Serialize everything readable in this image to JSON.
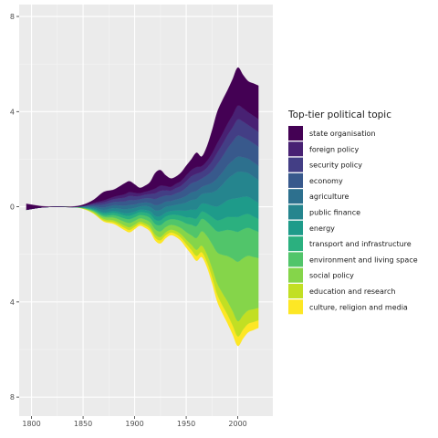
{
  "chart_data": {
    "type": "area",
    "subtype": "streamgraph",
    "title": "",
    "xlabel": "",
    "ylabel": "",
    "x_ticks": [
      1800,
      1850,
      1900,
      1950,
      2000
    ],
    "x_tick_labels": [
      "1800",
      "1850",
      "1900",
      "1950",
      "2000"
    ],
    "xlim": [
      1788,
      2034
    ],
    "y_ticks": [
      8,
      4,
      0,
      -4,
      -8
    ],
    "y_tick_labels": [
      "8",
      "4",
      "0",
      "4",
      "8"
    ],
    "ylim": [
      -8.8,
      8.5
    ],
    "grid": true,
    "legend": {
      "title": "Top-tier political topic",
      "position": "right"
    },
    "x": [
      1795,
      1810,
      1825,
      1840,
      1850,
      1860,
      1870,
      1880,
      1890,
      1895,
      1900,
      1905,
      1910,
      1915,
      1920,
      1925,
      1930,
      1935,
      1940,
      1945,
      1950,
      1955,
      1960,
      1965,
      1970,
      1975,
      1980,
      1985,
      1990,
      1995,
      2000,
      2005,
      2010,
      2015,
      2020
    ],
    "series": [
      {
        "name": "state organisation",
        "color": "#440154",
        "values": [
          0.25,
          0.05,
          0,
          0.02,
          0.05,
          0.12,
          0.35,
          0.3,
          0.45,
          0.45,
          0.35,
          0.22,
          0.25,
          0.35,
          0.65,
          0.65,
          0.45,
          0.35,
          0.3,
          0.35,
          0.4,
          0.45,
          0.6,
          0.4,
          0.6,
          0.95,
          1.3,
          1.4,
          1.4,
          1.5,
          1.6,
          1.4,
          1.3,
          1.35,
          1.4
        ]
      },
      {
        "name": "foreign policy",
        "color": "#482173",
        "values": [
          0,
          0,
          0,
          0,
          0,
          0.04,
          0.08,
          0.1,
          0.14,
          0.16,
          0.15,
          0.12,
          0.12,
          0.15,
          0.2,
          0.22,
          0.18,
          0.16,
          0.18,
          0.2,
          0.24,
          0.26,
          0.28,
          0.24,
          0.28,
          0.34,
          0.4,
          0.44,
          0.48,
          0.52,
          0.58,
          0.56,
          0.54,
          0.54,
          0.54
        ]
      },
      {
        "name": "security policy",
        "color": "#433E85",
        "values": [
          0,
          0,
          0,
          0,
          0,
          0.05,
          0.1,
          0.12,
          0.16,
          0.18,
          0.16,
          0.14,
          0.15,
          0.18,
          0.24,
          0.26,
          0.22,
          0.2,
          0.22,
          0.24,
          0.28,
          0.3,
          0.32,
          0.28,
          0.32,
          0.4,
          0.48,
          0.52,
          0.56,
          0.6,
          0.68,
          0.66,
          0.62,
          0.62,
          0.62
        ]
      },
      {
        "name": "economy",
        "color": "#38598C",
        "values": [
          0,
          0,
          0,
          0,
          0.02,
          0.06,
          0.12,
          0.14,
          0.18,
          0.2,
          0.18,
          0.16,
          0.18,
          0.2,
          0.26,
          0.3,
          0.26,
          0.24,
          0.26,
          0.28,
          0.34,
          0.38,
          0.4,
          0.36,
          0.4,
          0.5,
          0.6,
          0.66,
          0.72,
          0.8,
          0.88,
          0.84,
          0.8,
          0.8,
          0.8
        ]
      },
      {
        "name": "agriculture",
        "color": "#2D708E",
        "values": [
          0,
          0,
          0,
          0,
          0.02,
          0.05,
          0.1,
          0.12,
          0.15,
          0.16,
          0.15,
          0.14,
          0.15,
          0.17,
          0.22,
          0.24,
          0.22,
          0.2,
          0.22,
          0.24,
          0.28,
          0.32,
          0.34,
          0.3,
          0.34,
          0.4,
          0.48,
          0.52,
          0.56,
          0.6,
          0.64,
          0.62,
          0.6,
          0.6,
          0.6
        ]
      },
      {
        "name": "public finance",
        "color": "#25858E",
        "values": [
          0,
          0,
          0,
          0,
          0.02,
          0.05,
          0.1,
          0.12,
          0.16,
          0.18,
          0.16,
          0.14,
          0.16,
          0.18,
          0.24,
          0.26,
          0.24,
          0.22,
          0.24,
          0.28,
          0.34,
          0.4,
          0.44,
          0.4,
          0.46,
          0.56,
          0.7,
          0.8,
          0.9,
          1.0,
          1.1,
          1.05,
          1.0,
          0.98,
          0.96
        ]
      },
      {
        "name": "energy",
        "color": "#1E9B8A",
        "values": [
          0,
          0,
          0,
          0,
          0.01,
          0.03,
          0.06,
          0.08,
          0.1,
          0.12,
          0.1,
          0.1,
          0.11,
          0.13,
          0.16,
          0.18,
          0.17,
          0.16,
          0.18,
          0.22,
          0.28,
          0.34,
          0.38,
          0.34,
          0.4,
          0.48,
          0.58,
          0.64,
          0.7,
          0.76,
          0.8,
          0.76,
          0.72,
          0.7,
          0.68
        ]
      },
      {
        "name": "transport and infrastructure",
        "color": "#2BB07F",
        "values": [
          0,
          0,
          0,
          0,
          0.01,
          0.04,
          0.08,
          0.1,
          0.12,
          0.14,
          0.13,
          0.12,
          0.13,
          0.15,
          0.18,
          0.2,
          0.19,
          0.18,
          0.2,
          0.22,
          0.26,
          0.3,
          0.32,
          0.3,
          0.34,
          0.4,
          0.46,
          0.5,
          0.54,
          0.58,
          0.62,
          0.6,
          0.58,
          0.56,
          0.54
        ]
      },
      {
        "name": "environment and living space",
        "color": "#51C56A",
        "values": [
          0,
          0,
          0,
          0,
          0.01,
          0.03,
          0.06,
          0.1,
          0.14,
          0.16,
          0.15,
          0.14,
          0.16,
          0.18,
          0.22,
          0.26,
          0.25,
          0.24,
          0.26,
          0.3,
          0.36,
          0.44,
          0.5,
          0.52,
          0.6,
          0.72,
          0.88,
          1.0,
          1.1,
          1.18,
          1.26,
          1.22,
          1.18,
          1.14,
          1.1
        ]
      },
      {
        "name": "social policy",
        "color": "#85D54A",
        "values": [
          0,
          0,
          0,
          0,
          0.01,
          0.04,
          0.08,
          0.12,
          0.16,
          0.18,
          0.16,
          0.14,
          0.16,
          0.18,
          0.22,
          0.24,
          0.22,
          0.2,
          0.22,
          0.26,
          0.32,
          0.4,
          0.5,
          0.6,
          0.76,
          1.0,
          1.3,
          1.6,
          1.9,
          2.2,
          2.5,
          2.4,
          2.3,
          2.2,
          2.1
        ]
      },
      {
        "name": "education and research",
        "color": "#C2DF23",
        "values": [
          0,
          0,
          0,
          0,
          0.01,
          0.03,
          0.06,
          0.08,
          0.1,
          0.11,
          0.1,
          0.09,
          0.1,
          0.11,
          0.13,
          0.14,
          0.13,
          0.12,
          0.13,
          0.15,
          0.18,
          0.22,
          0.26,
          0.28,
          0.32,
          0.38,
          0.46,
          0.52,
          0.56,
          0.6,
          0.64,
          0.6,
          0.56,
          0.54,
          0.52
        ]
      },
      {
        "name": "culture, religion and media",
        "color": "#FDE725",
        "values": [
          0,
          0,
          0,
          0,
          0.01,
          0.03,
          0.05,
          0.07,
          0.09,
          0.1,
          0.09,
          0.08,
          0.09,
          0.1,
          0.12,
          0.13,
          0.12,
          0.11,
          0.12,
          0.13,
          0.16,
          0.18,
          0.2,
          0.2,
          0.22,
          0.26,
          0.3,
          0.33,
          0.36,
          0.38,
          0.4,
          0.38,
          0.36,
          0.34,
          0.32
        ]
      }
    ]
  }
}
